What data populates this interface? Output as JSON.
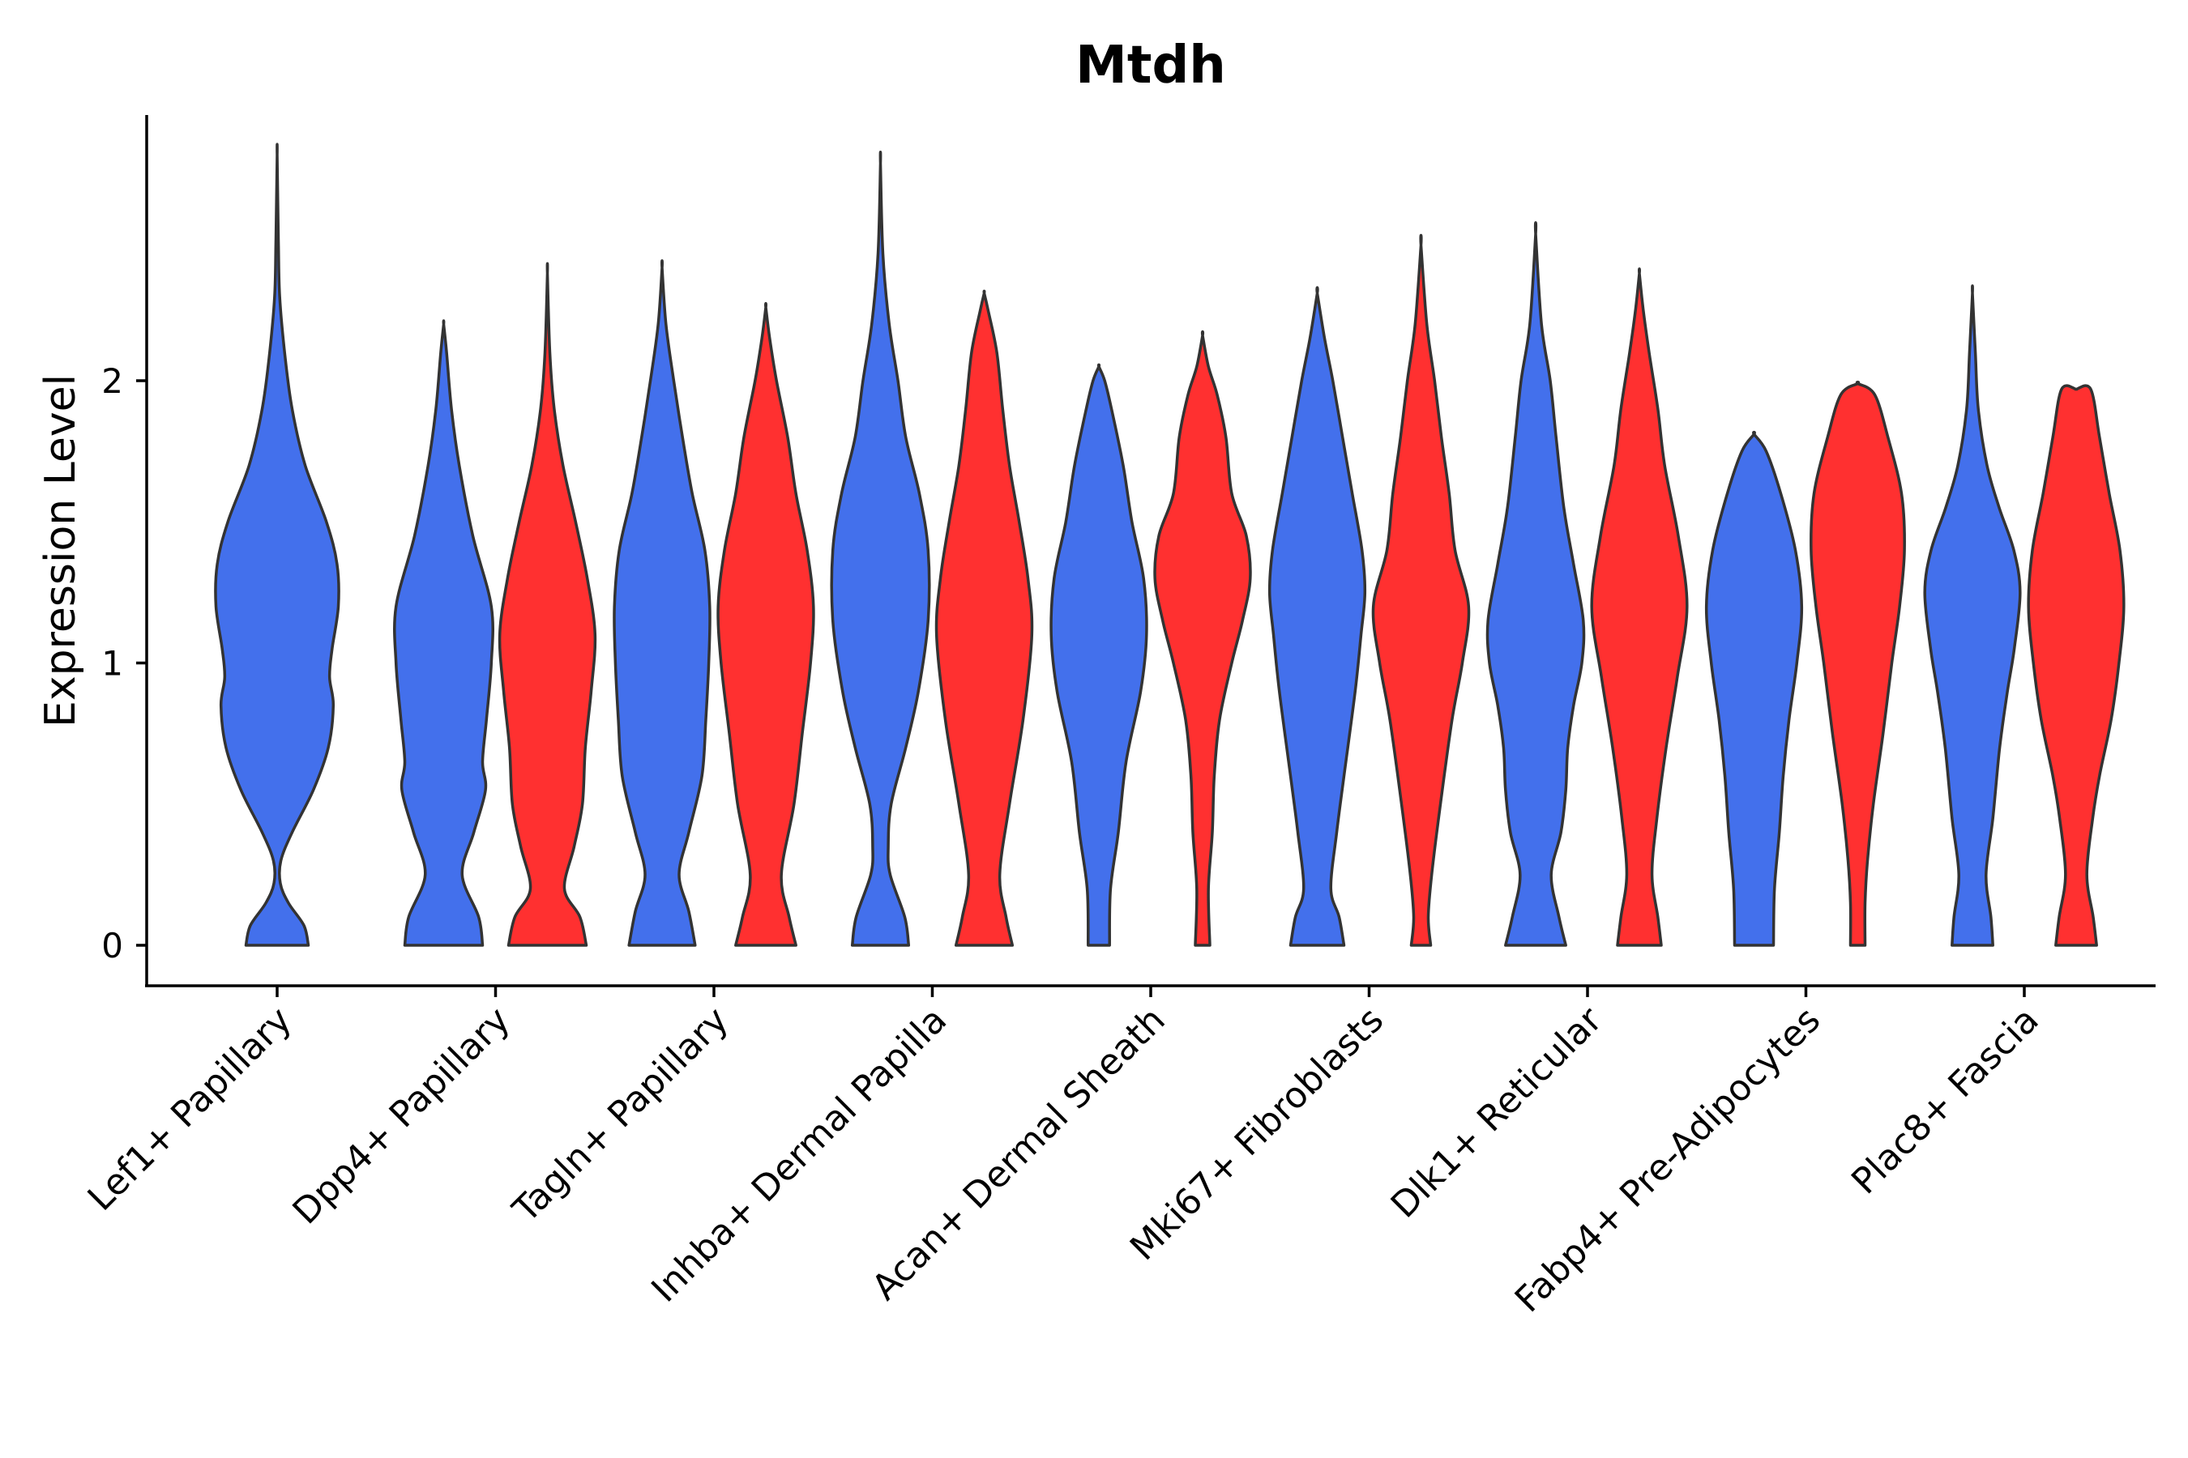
{
  "chart_data": {
    "type": "violin",
    "title": "Mtdh",
    "xlabel": "",
    "ylabel": "Expression Level",
    "ylim": [
      -0.14,
      2.95
    ],
    "yticks": [
      0,
      1,
      2
    ],
    "colors": {
      "group_a": "#4370EC",
      "group_b": "#FF3030"
    },
    "categories": [
      "Lef1+ Papillary",
      "Dpp4+ Papillary",
      "Tagln+ Papillary",
      "Inhba+ Dermal Papilla",
      "Acan+ Dermal Sheath",
      "Mki67+ Fibroblasts",
      "Dlk1+ Reticular",
      "Fabp4+ Pre-Adipocytes",
      "Plac8+ Fascia"
    ],
    "violins": [
      {
        "category": 0,
        "group": "a",
        "profile": [
          [
            0,
            0.5
          ],
          [
            0.07,
            0.43
          ],
          [
            0.15,
            0.18
          ],
          [
            0.22,
            0.05
          ],
          [
            0.3,
            0.06
          ],
          [
            0.4,
            0.24
          ],
          [
            0.55,
            0.58
          ],
          [
            0.7,
            0.82
          ],
          [
            0.85,
            0.9
          ],
          [
            0.95,
            0.84
          ],
          [
            1.05,
            0.88
          ],
          [
            1.2,
            0.98
          ],
          [
            1.35,
            0.96
          ],
          [
            1.5,
            0.79
          ],
          [
            1.7,
            0.45
          ],
          [
            1.9,
            0.24
          ],
          [
            2.1,
            0.12
          ],
          [
            2.3,
            0.04
          ],
          [
            2.5,
            0.02
          ],
          [
            2.8,
            0.0
          ]
        ]
      },
      {
        "category": 1,
        "group": "a",
        "profile": [
          [
            0,
            0.8
          ],
          [
            0.1,
            0.72
          ],
          [
            0.25,
            0.38
          ],
          [
            0.4,
            0.62
          ],
          [
            0.55,
            0.86
          ],
          [
            0.65,
            0.8
          ],
          [
            0.8,
            0.88
          ],
          [
            1.0,
            0.98
          ],
          [
            1.2,
            0.98
          ],
          [
            1.45,
            0.6
          ],
          [
            1.7,
            0.32
          ],
          [
            1.9,
            0.16
          ],
          [
            2.1,
            0.06
          ],
          [
            2.2,
            0.0
          ]
        ]
      },
      {
        "category": 1,
        "group": "b",
        "profile": [
          [
            0,
            0.8
          ],
          [
            0.1,
            0.67
          ],
          [
            0.2,
            0.35
          ],
          [
            0.35,
            0.55
          ],
          [
            0.5,
            0.72
          ],
          [
            0.7,
            0.78
          ],
          [
            0.9,
            0.9
          ],
          [
            1.1,
            0.98
          ],
          [
            1.3,
            0.82
          ],
          [
            1.5,
            0.58
          ],
          [
            1.7,
            0.32
          ],
          [
            1.9,
            0.14
          ],
          [
            2.1,
            0.05
          ],
          [
            2.38,
            0.0
          ]
        ]
      },
      {
        "category": 2,
        "group": "a",
        "profile": [
          [
            0,
            0.68
          ],
          [
            0.12,
            0.55
          ],
          [
            0.25,
            0.35
          ],
          [
            0.4,
            0.55
          ],
          [
            0.6,
            0.82
          ],
          [
            0.8,
            0.9
          ],
          [
            1.0,
            0.96
          ],
          [
            1.2,
            0.98
          ],
          [
            1.4,
            0.88
          ],
          [
            1.6,
            0.62
          ],
          [
            1.8,
            0.42
          ],
          [
            2.0,
            0.24
          ],
          [
            2.2,
            0.08
          ],
          [
            2.4,
            0.0
          ]
        ]
      },
      {
        "category": 2,
        "group": "b",
        "profile": [
          [
            0,
            0.62
          ],
          [
            0.1,
            0.48
          ],
          [
            0.25,
            0.32
          ],
          [
            0.5,
            0.58
          ],
          [
            0.75,
            0.75
          ],
          [
            1.0,
            0.92
          ],
          [
            1.2,
            0.98
          ],
          [
            1.4,
            0.85
          ],
          [
            1.6,
            0.62
          ],
          [
            1.8,
            0.45
          ],
          [
            2.0,
            0.22
          ],
          [
            2.15,
            0.08
          ],
          [
            2.26,
            0.0
          ]
        ]
      },
      {
        "category": 3,
        "group": "a",
        "profile": [
          [
            0,
            0.58
          ],
          [
            0.1,
            0.5
          ],
          [
            0.25,
            0.2
          ],
          [
            0.35,
            0.16
          ],
          [
            0.5,
            0.22
          ],
          [
            0.7,
            0.52
          ],
          [
            0.9,
            0.78
          ],
          [
            1.15,
            0.98
          ],
          [
            1.4,
            0.98
          ],
          [
            1.6,
            0.8
          ],
          [
            1.8,
            0.52
          ],
          [
            2.0,
            0.36
          ],
          [
            2.2,
            0.18
          ],
          [
            2.45,
            0.05
          ],
          [
            2.77,
            0.0
          ]
        ]
      },
      {
        "category": 3,
        "group": "b",
        "profile": [
          [
            0,
            0.58
          ],
          [
            0.1,
            0.45
          ],
          [
            0.25,
            0.32
          ],
          [
            0.5,
            0.52
          ],
          [
            0.8,
            0.8
          ],
          [
            1.1,
            0.98
          ],
          [
            1.3,
            0.9
          ],
          [
            1.5,
            0.72
          ],
          [
            1.7,
            0.52
          ],
          [
            1.9,
            0.38
          ],
          [
            2.1,
            0.26
          ],
          [
            2.25,
            0.08
          ],
          [
            2.31,
            0.0
          ]
        ]
      },
      {
        "category": 4,
        "group": "a",
        "profile": [
          [
            0,
            0.22
          ],
          [
            0.2,
            0.24
          ],
          [
            0.4,
            0.4
          ],
          [
            0.65,
            0.56
          ],
          [
            0.9,
            0.86
          ],
          [
            1.1,
            0.98
          ],
          [
            1.3,
            0.92
          ],
          [
            1.5,
            0.68
          ],
          [
            1.7,
            0.5
          ],
          [
            1.9,
            0.26
          ],
          [
            2.0,
            0.12
          ],
          [
            2.05,
            0.0
          ]
        ]
      },
      {
        "category": 4,
        "group": "b",
        "profile": [
          [
            0,
            0.15
          ],
          [
            0.2,
            0.12
          ],
          [
            0.4,
            0.2
          ],
          [
            0.6,
            0.24
          ],
          [
            0.8,
            0.35
          ],
          [
            1.0,
            0.6
          ],
          [
            1.15,
            0.82
          ],
          [
            1.3,
            0.98
          ],
          [
            1.45,
            0.9
          ],
          [
            1.6,
            0.6
          ],
          [
            1.8,
            0.48
          ],
          [
            1.95,
            0.3
          ],
          [
            2.05,
            0.12
          ],
          [
            2.16,
            0.0
          ]
        ]
      },
      {
        "category": 5,
        "group": "a",
        "profile": [
          [
            0,
            0.55
          ],
          [
            0.1,
            0.45
          ],
          [
            0.2,
            0.28
          ],
          [
            0.4,
            0.4
          ],
          [
            0.6,
            0.55
          ],
          [
            0.9,
            0.78
          ],
          [
            1.1,
            0.9
          ],
          [
            1.25,
            0.98
          ],
          [
            1.4,
            0.92
          ],
          [
            1.6,
            0.72
          ],
          [
            1.8,
            0.52
          ],
          [
            2.0,
            0.32
          ],
          [
            2.15,
            0.15
          ],
          [
            2.31,
            0.0
          ]
        ]
      },
      {
        "category": 5,
        "group": "b",
        "profile": [
          [
            0,
            0.2
          ],
          [
            0.1,
            0.15
          ],
          [
            0.25,
            0.22
          ],
          [
            0.5,
            0.4
          ],
          [
            0.8,
            0.64
          ],
          [
            1.0,
            0.85
          ],
          [
            1.2,
            0.98
          ],
          [
            1.4,
            0.7
          ],
          [
            1.6,
            0.58
          ],
          [
            1.8,
            0.42
          ],
          [
            2.0,
            0.28
          ],
          [
            2.2,
            0.12
          ],
          [
            2.48,
            0.0
          ]
        ]
      },
      {
        "category": 6,
        "group": "a",
        "profile": [
          [
            0,
            0.62
          ],
          [
            0.1,
            0.48
          ],
          [
            0.25,
            0.32
          ],
          [
            0.4,
            0.52
          ],
          [
            0.55,
            0.62
          ],
          [
            0.7,
            0.66
          ],
          [
            0.85,
            0.78
          ],
          [
            1.0,
            0.95
          ],
          [
            1.15,
            0.98
          ],
          [
            1.35,
            0.78
          ],
          [
            1.55,
            0.58
          ],
          [
            1.8,
            0.42
          ],
          [
            2.0,
            0.3
          ],
          [
            2.2,
            0.12
          ],
          [
            2.52,
            0.0
          ]
        ]
      },
      {
        "category": 6,
        "group": "b",
        "profile": [
          [
            0,
            0.45
          ],
          [
            0.1,
            0.38
          ],
          [
            0.25,
            0.26
          ],
          [
            0.45,
            0.36
          ],
          [
            0.7,
            0.55
          ],
          [
            0.95,
            0.78
          ],
          [
            1.2,
            0.98
          ],
          [
            1.45,
            0.8
          ],
          [
            1.7,
            0.52
          ],
          [
            1.9,
            0.38
          ],
          [
            2.1,
            0.2
          ],
          [
            2.25,
            0.08
          ],
          [
            2.38,
            0.0
          ]
        ]
      },
      {
        "category": 7,
        "group": "a",
        "profile": [
          [
            0,
            0.4
          ],
          [
            0.2,
            0.42
          ],
          [
            0.4,
            0.52
          ],
          [
            0.6,
            0.6
          ],
          [
            0.8,
            0.72
          ],
          [
            1.0,
            0.88
          ],
          [
            1.2,
            0.98
          ],
          [
            1.4,
            0.85
          ],
          [
            1.6,
            0.55
          ],
          [
            1.75,
            0.25
          ],
          [
            1.81,
            0.0
          ]
        ]
      },
      {
        "category": 7,
        "group": "b",
        "profile": [
          [
            0,
            0.15
          ],
          [
            0.15,
            0.15
          ],
          [
            0.3,
            0.2
          ],
          [
            0.5,
            0.32
          ],
          [
            0.75,
            0.52
          ],
          [
            1.0,
            0.7
          ],
          [
            1.2,
            0.86
          ],
          [
            1.4,
            0.96
          ],
          [
            1.6,
            0.9
          ],
          [
            1.8,
            0.62
          ],
          [
            1.95,
            0.35
          ],
          [
            1.99,
            0.0
          ]
        ]
      },
      {
        "category": 8,
        "group": "a",
        "profile": [
          [
            0,
            0.42
          ],
          [
            0.1,
            0.38
          ],
          [
            0.25,
            0.28
          ],
          [
            0.45,
            0.42
          ],
          [
            0.7,
            0.56
          ],
          [
            0.9,
            0.72
          ],
          [
            1.05,
            0.86
          ],
          [
            1.25,
            0.98
          ],
          [
            1.4,
            0.85
          ],
          [
            1.55,
            0.55
          ],
          [
            1.7,
            0.3
          ],
          [
            1.9,
            0.12
          ],
          [
            2.1,
            0.06
          ],
          [
            2.31,
            0.0
          ]
        ]
      },
      {
        "category": 8,
        "group": "b",
        "profile": [
          [
            0,
            0.42
          ],
          [
            0.1,
            0.35
          ],
          [
            0.25,
            0.22
          ],
          [
            0.45,
            0.34
          ],
          [
            0.6,
            0.48
          ],
          [
            0.8,
            0.72
          ],
          [
            1.0,
            0.88
          ],
          [
            1.2,
            0.98
          ],
          [
            1.4,
            0.9
          ],
          [
            1.6,
            0.68
          ],
          [
            1.8,
            0.48
          ],
          [
            1.97,
            0.3
          ],
          [
            1.97,
            0.0
          ]
        ]
      }
    ]
  }
}
